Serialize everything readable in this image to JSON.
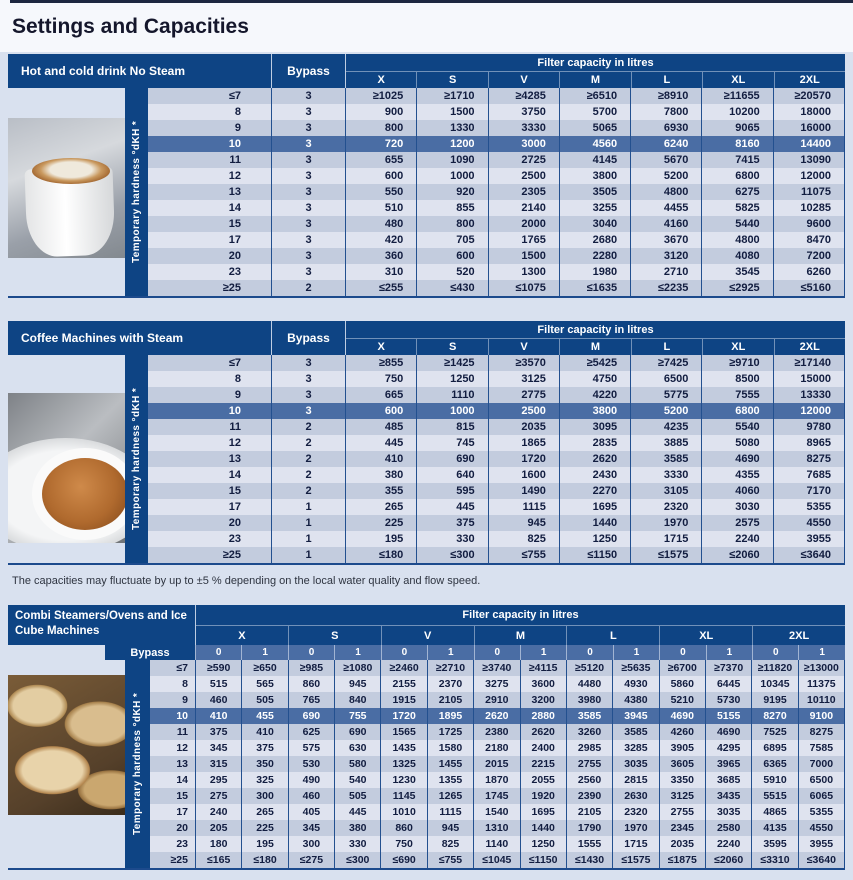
{
  "title": "Settings and Capacities",
  "note": "The capacities may fluctuate by up to ±5 % depending on the local water quality and flow speed.",
  "shared": {
    "filter_capacity_header": "Filter capacity in litres",
    "bypass_header": "Bypass",
    "hardness_axis_label": "Temporary hardness °dKH *",
    "sizes": [
      "X",
      "S",
      "V",
      "M",
      "L",
      "XL",
      "2XL"
    ],
    "bypass_sub_columns": [
      "0",
      "1"
    ]
  },
  "colors": {
    "header_navy": "#0e4484",
    "highlight_blue": "#4a6da4",
    "row_dark": "#c3ccde",
    "row_light": "#dfe3ef",
    "band_bg": "#d9e1ef"
  },
  "tables": [
    {
      "name": "Hot and cold drink No Steam",
      "photo": "foam-cup-latte-photo",
      "highlight_hardness": "10",
      "rows": [
        {
          "hardness": "≤7",
          "bypass": "3",
          "values": [
            "≥1025",
            "≥1710",
            "≥4285",
            "≥6510",
            "≥8910",
            "≥11655",
            "≥20570"
          ]
        },
        {
          "hardness": "8",
          "bypass": "3",
          "values": [
            "900",
            "1500",
            "3750",
            "5700",
            "7800",
            "10200",
            "18000"
          ]
        },
        {
          "hardness": "9",
          "bypass": "3",
          "values": [
            "800",
            "1330",
            "3330",
            "5065",
            "6930",
            "9065",
            "16000"
          ]
        },
        {
          "hardness": "10",
          "bypass": "3",
          "values": [
            "720",
            "1200",
            "3000",
            "4560",
            "6240",
            "8160",
            "14400"
          ]
        },
        {
          "hardness": "11",
          "bypass": "3",
          "values": [
            "655",
            "1090",
            "2725",
            "4145",
            "5670",
            "7415",
            "13090"
          ]
        },
        {
          "hardness": "12",
          "bypass": "3",
          "values": [
            "600",
            "1000",
            "2500",
            "3800",
            "5200",
            "6800",
            "12000"
          ]
        },
        {
          "hardness": "13",
          "bypass": "3",
          "values": [
            "550",
            "920",
            "2305",
            "3505",
            "4800",
            "6275",
            "11075"
          ]
        },
        {
          "hardness": "14",
          "bypass": "3",
          "values": [
            "510",
            "855",
            "2140",
            "3255",
            "4455",
            "5825",
            "10285"
          ]
        },
        {
          "hardness": "15",
          "bypass": "3",
          "values": [
            "480",
            "800",
            "2000",
            "3040",
            "4160",
            "5440",
            "9600"
          ]
        },
        {
          "hardness": "17",
          "bypass": "3",
          "values": [
            "420",
            "705",
            "1765",
            "2680",
            "3670",
            "4800",
            "8470"
          ]
        },
        {
          "hardness": "20",
          "bypass": "3",
          "values": [
            "360",
            "600",
            "1500",
            "2280",
            "3120",
            "4080",
            "7200"
          ]
        },
        {
          "hardness": "23",
          "bypass": "3",
          "values": [
            "310",
            "520",
            "1300",
            "1980",
            "2710",
            "3545",
            "6260"
          ]
        },
        {
          "hardness": "≥25",
          "bypass": "2",
          "values": [
            "≤255",
            "≤430",
            "≤1075",
            "≤1635",
            "≤2235",
            "≤2925",
            "≤5160"
          ]
        }
      ]
    },
    {
      "name": "Coffee Machines with Steam",
      "photo": "espresso-cup-top-view-photo",
      "highlight_hardness": "10",
      "rows": [
        {
          "hardness": "≤7",
          "bypass": "3",
          "values": [
            "≥855",
            "≥1425",
            "≥3570",
            "≥5425",
            "≥7425",
            "≥9710",
            "≥17140"
          ]
        },
        {
          "hardness": "8",
          "bypass": "3",
          "values": [
            "750",
            "1250",
            "3125",
            "4750",
            "6500",
            "8500",
            "15000"
          ]
        },
        {
          "hardness": "9",
          "bypass": "3",
          "values": [
            "665",
            "1110",
            "2775",
            "4220",
            "5775",
            "7555",
            "13330"
          ]
        },
        {
          "hardness": "10",
          "bypass": "3",
          "values": [
            "600",
            "1000",
            "2500",
            "3800",
            "5200",
            "6800",
            "12000"
          ]
        },
        {
          "hardness": "11",
          "bypass": "2",
          "values": [
            "485",
            "815",
            "2035",
            "3095",
            "4235",
            "5540",
            "9780"
          ]
        },
        {
          "hardness": "12",
          "bypass": "2",
          "values": [
            "445",
            "745",
            "1865",
            "2835",
            "3885",
            "5080",
            "8965"
          ]
        },
        {
          "hardness": "13",
          "bypass": "2",
          "values": [
            "410",
            "690",
            "1720",
            "2620",
            "3585",
            "4690",
            "8275"
          ]
        },
        {
          "hardness": "14",
          "bypass": "2",
          "values": [
            "380",
            "640",
            "1600",
            "2430",
            "3330",
            "4355",
            "7685"
          ]
        },
        {
          "hardness": "15",
          "bypass": "2",
          "values": [
            "355",
            "595",
            "1490",
            "2270",
            "3105",
            "4060",
            "7170"
          ]
        },
        {
          "hardness": "17",
          "bypass": "1",
          "values": [
            "265",
            "445",
            "1115",
            "1695",
            "2320",
            "3030",
            "5355"
          ]
        },
        {
          "hardness": "20",
          "bypass": "1",
          "values": [
            "225",
            "375",
            "945",
            "1440",
            "1970",
            "2575",
            "4550"
          ]
        },
        {
          "hardness": "23",
          "bypass": "1",
          "values": [
            "195",
            "330",
            "825",
            "1250",
            "1715",
            "2240",
            "3955"
          ]
        },
        {
          "hardness": "≥25",
          "bypass": "1",
          "values": [
            "≤180",
            "≤300",
            "≤755",
            "≤1150",
            "≤1575",
            "≤2060",
            "≤3640"
          ]
        }
      ]
    },
    {
      "name": "Combi Steamers/Ovens and Ice Cube Machines",
      "photo": "bread-basket-photo",
      "highlight_hardness": "10",
      "rows": [
        {
          "hardness": "≤7",
          "values": [
            "≥590",
            "≥650",
            "≥985",
            "≥1080",
            "≥2460",
            "≥2710",
            "≥3740",
            "≥4115",
            "≥5120",
            "≥5635",
            "≥6700",
            "≥7370",
            "≥11820",
            "≥13000"
          ]
        },
        {
          "hardness": "8",
          "values": [
            "515",
            "565",
            "860",
            "945",
            "2155",
            "2370",
            "3275",
            "3600",
            "4480",
            "4930",
            "5860",
            "6445",
            "10345",
            "11375"
          ]
        },
        {
          "hardness": "9",
          "values": [
            "460",
            "505",
            "765",
            "840",
            "1915",
            "2105",
            "2910",
            "3200",
            "3980",
            "4380",
            "5210",
            "5730",
            "9195",
            "10110"
          ]
        },
        {
          "hardness": "10",
          "values": [
            "410",
            "455",
            "690",
            "755",
            "1720",
            "1895",
            "2620",
            "2880",
            "3585",
            "3945",
            "4690",
            "5155",
            "8270",
            "9100"
          ]
        },
        {
          "hardness": "11",
          "values": [
            "375",
            "410",
            "625",
            "690",
            "1565",
            "1725",
            "2380",
            "2620",
            "3260",
            "3585",
            "4260",
            "4690",
            "7525",
            "8275"
          ]
        },
        {
          "hardness": "12",
          "values": [
            "345",
            "375",
            "575",
            "630",
            "1435",
            "1580",
            "2180",
            "2400",
            "2985",
            "3285",
            "3905",
            "4295",
            "6895",
            "7585"
          ]
        },
        {
          "hardness": "13",
          "values": [
            "315",
            "350",
            "530",
            "580",
            "1325",
            "1455",
            "2015",
            "2215",
            "2755",
            "3035",
            "3605",
            "3965",
            "6365",
            "7000"
          ]
        },
        {
          "hardness": "14",
          "values": [
            "295",
            "325",
            "490",
            "540",
            "1230",
            "1355",
            "1870",
            "2055",
            "2560",
            "2815",
            "3350",
            "3685",
            "5910",
            "6500"
          ]
        },
        {
          "hardness": "15",
          "values": [
            "275",
            "300",
            "460",
            "505",
            "1145",
            "1265",
            "1745",
            "1920",
            "2390",
            "2630",
            "3125",
            "3435",
            "5515",
            "6065"
          ]
        },
        {
          "hardness": "17",
          "values": [
            "240",
            "265",
            "405",
            "445",
            "1010",
            "1115",
            "1540",
            "1695",
            "2105",
            "2320",
            "2755",
            "3035",
            "4865",
            "5355"
          ]
        },
        {
          "hardness": "20",
          "values": [
            "205",
            "225",
            "345",
            "380",
            "860",
            "945",
            "1310",
            "1440",
            "1790",
            "1970",
            "2345",
            "2580",
            "4135",
            "4550"
          ]
        },
        {
          "hardness": "23",
          "values": [
            "180",
            "195",
            "300",
            "330",
            "750",
            "825",
            "1140",
            "1250",
            "1555",
            "1715",
            "2035",
            "2240",
            "3595",
            "3955"
          ]
        },
        {
          "hardness": "≥25",
          "values": [
            "≤165",
            "≤180",
            "≤275",
            "≤300",
            "≤690",
            "≤755",
            "≤1045",
            "≤1150",
            "≤1430",
            "≤1575",
            "≤1875",
            "≤2060",
            "≤3310",
            "≤3640"
          ]
        }
      ]
    }
  ]
}
